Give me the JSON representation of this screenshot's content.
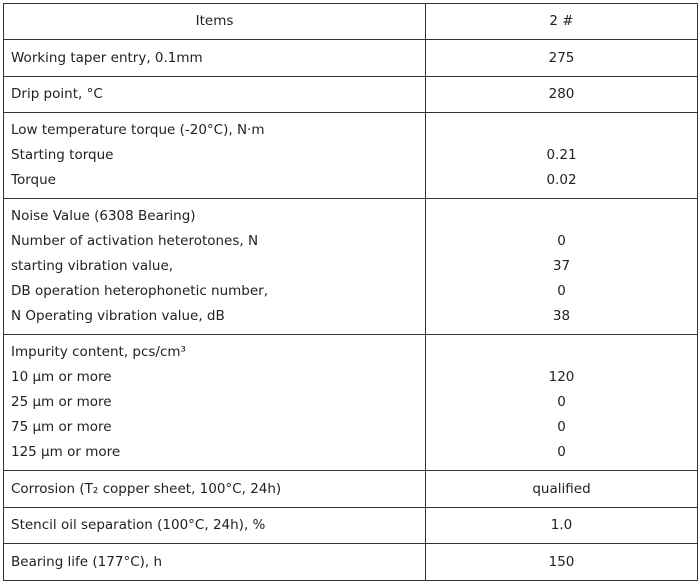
{
  "header": {
    "items": "Items",
    "value": "2 #"
  },
  "rows": [
    {
      "label": "Working taper entry, 0.1mm",
      "value": "275"
    },
    {
      "label": "Drip point, °C",
      "value": "280"
    },
    {
      "heading": "Low temperature torque (-20°C), N·m",
      "lines": [
        {
          "label": "Starting torque",
          "value": "0.21"
        },
        {
          "label": "Torque",
          "value": "0.02"
        }
      ]
    },
    {
      "heading": "Noise Value (6308 Bearing)",
      "lines": [
        {
          "label": "Number of activation heterotones, N",
          "value": "0"
        },
        {
          "label": "starting vibration value,",
          "value": "37"
        },
        {
          "label": "DB operation heterophonetic number,",
          "value": "0"
        },
        {
          "label": "N Operating vibration value, dB",
          "value": "38"
        }
      ]
    },
    {
      "heading": "Impurity content, pcs/cm³",
      "lines": [
        {
          "label": "10 μm or more",
          "value": "120"
        },
        {
          "label": "25 μm or more",
          "value": "0"
        },
        {
          "label": "75 μm or more",
          "value": "0"
        },
        {
          "label": "125 μm or more",
          "value": "0"
        }
      ]
    },
    {
      "label": "Corrosion (T₂ copper sheet, 100°C, 24h)",
      "value": "qualified"
    },
    {
      "label": "Stencil oil separation (100°C, 24h), %",
      "value": "1.0"
    },
    {
      "label": "Bearing life (177°C), h",
      "value": "150"
    }
  ]
}
